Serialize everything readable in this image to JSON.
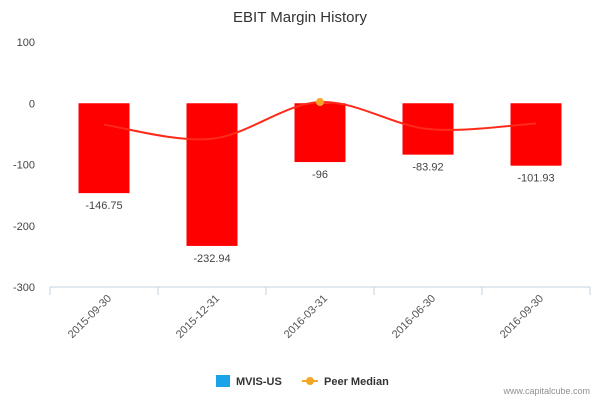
{
  "chart_data": {
    "type": "bar",
    "title": "EBIT Margin History",
    "xlabel": "",
    "ylabel": "",
    "categories": [
      "2015-09-30",
      "2015-12-31",
      "2016-03-31",
      "2016-06-30",
      "2016-09-30"
    ],
    "ylim": [
      -300,
      100
    ],
    "yticks": [
      100,
      0,
      -100,
      -200,
      -300
    ],
    "grid": false,
    "legend_position": "bottom",
    "series": [
      {
        "name": "MVIS-US",
        "type": "bar",
        "color": "#ff0000",
        "legend_color": "#1aa3e8",
        "values": [
          -146.75,
          -232.94,
          -96,
          -83.92,
          -101.93
        ],
        "labels": [
          "-146.75",
          "-232.94",
          "-96",
          "-83.92",
          "-101.93"
        ]
      },
      {
        "name": "Peer Median",
        "type": "line",
        "color": "#ff2a1a",
        "marker_color": "#f5a623",
        "values": [
          -35,
          -58,
          2,
          -42,
          -33
        ],
        "marker_at": [
          2
        ]
      }
    ]
  },
  "credit": "www.capitalcube.com"
}
